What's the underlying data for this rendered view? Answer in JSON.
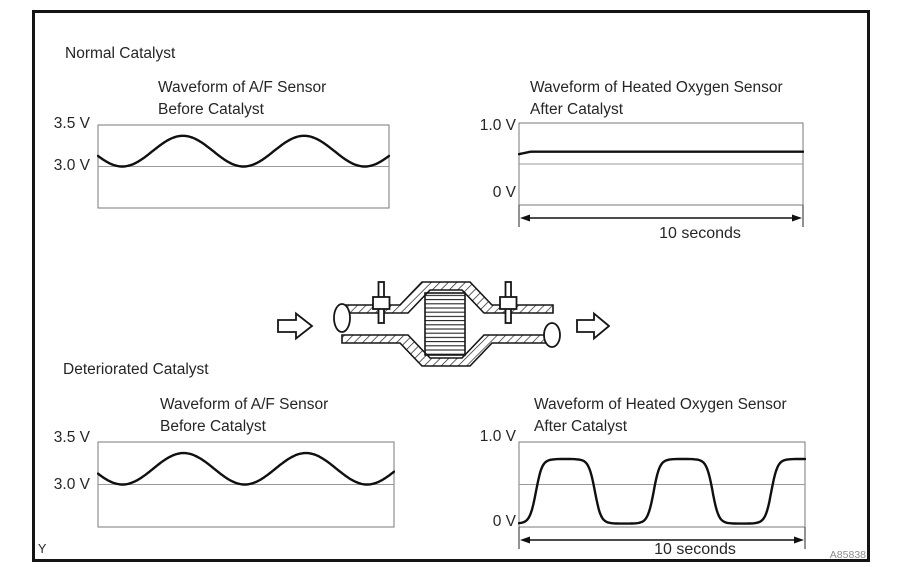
{
  "figure": {
    "corner_label": "Y",
    "figure_id": "A85838"
  },
  "sections": {
    "normal": {
      "label": "Normal Catalyst"
    },
    "deteriorated": {
      "label": "Deteriorated Catalyst"
    }
  },
  "illustration": {
    "name": "catalytic-converter-cross-section",
    "parts": [
      "exhaust-flow-in-arrow",
      "front-sensor-plug",
      "catalyst-core",
      "rear-sensor-plug",
      "exhaust-flow-out-arrow"
    ]
  },
  "colors": {
    "frame_border": "#141414",
    "plot_border": "#7a7a7a",
    "gridline": "#9a9a9a",
    "trace": "#101010",
    "text": "#262626",
    "figure_id_text": "#8c8c8c"
  },
  "chart_data": [
    {
      "id": "af-sensor-before-catalyst-normal",
      "type": "line",
      "title_line1": "Waveform of A/F Sensor",
      "title_line2": "Before Catalyst",
      "y_ticks": [
        {
          "label": "3.5 V",
          "v": 3.5
        },
        {
          "label": "3.0 V",
          "v": 3.0
        }
      ],
      "v_top": 3.5,
      "v_bottom": 2.5,
      "gridline_v": 3.0,
      "x_label": null,
      "wave": {
        "shape": "sine",
        "v_min": 3.0,
        "v_max": 3.37,
        "cycles": 2.4,
        "phase_deg": 108
      }
    },
    {
      "id": "heated-oxygen-sensor-after-catalyst-normal",
      "type": "line",
      "title_line1": "Waveform of Heated Oxygen Sensor",
      "title_line2": "After Catalyst",
      "y_ticks": [
        {
          "label": "1.0 V",
          "v": 1.0
        },
        {
          "label": "0 V",
          "v": 0
        }
      ],
      "v_top": 1.0,
      "v_bottom": 0.0,
      "gridline_v": 0.5,
      "x_label": "10 seconds",
      "wave": {
        "shape": "flat",
        "v": 0.65,
        "start_v": 0.62,
        "step_t": 0.04
      }
    },
    {
      "id": "af-sensor-before-catalyst-deteriorated",
      "type": "line",
      "title_line1": "Waveform of A/F Sensor",
      "title_line2": "Before Catalyst",
      "y_ticks": [
        {
          "label": "3.5 V",
          "v": 3.5
        },
        {
          "label": "3.0 V",
          "v": 3.0
        }
      ],
      "v_top": 3.5,
      "v_bottom": 2.5,
      "gridline_v": 3.0,
      "x_label": null,
      "wave": {
        "shape": "sine",
        "v_min": 3.0,
        "v_max": 3.37,
        "cycles": 2.42,
        "phase_deg": 108
      }
    },
    {
      "id": "heated-oxygen-sensor-after-catalyst-deteriorated",
      "type": "line",
      "title_line1": "Waveform of Heated Oxygen Sensor",
      "title_line2": "After Catalyst",
      "y_ticks": [
        {
          "label": "1.0 V",
          "v": 1.0
        },
        {
          "label": "0 V",
          "v": 0
        }
      ],
      "v_top": 1.0,
      "v_bottom": 0.0,
      "gridline_v": 0.5,
      "x_label": "10 seconds",
      "wave": {
        "shape": "square",
        "v_min": 0.04,
        "v_max": 0.8,
        "cycles": 2.43,
        "phase_deg": -52,
        "sharpness": 3
      }
    }
  ]
}
